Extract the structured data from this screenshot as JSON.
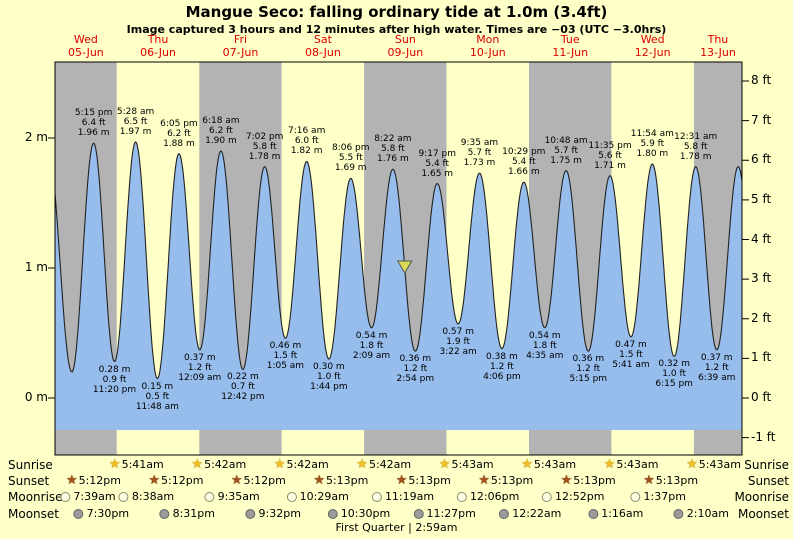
{
  "chart_data": {
    "type": "area",
    "title": "Mangue Seco: falling ordinary tide at 1.0m (3.4ft)",
    "subtitle": "Image captured 3 hours and 12 minutes after high water. Times are −03 (UTC −3.0hrs)",
    "x_range_hours": [
      6,
      206
    ],
    "y_axis_left": {
      "unit": "m",
      "ticks": [
        {
          "label": "2 m",
          "value": 2
        },
        {
          "label": "1 m",
          "value": 1
        },
        {
          "label": "0 m",
          "value": 0
        }
      ]
    },
    "y_axis_right": {
      "unit": "ft",
      "ticks": [
        {
          "label": "8 ft",
          "value": 8
        },
        {
          "label": "7 ft",
          "value": 7
        },
        {
          "label": "6 ft",
          "value": 6
        },
        {
          "label": "5 ft",
          "value": 5
        },
        {
          "label": "4 ft",
          "value": 4
        },
        {
          "label": "3 ft",
          "value": 3
        },
        {
          "label": "2 ft",
          "value": 2
        },
        {
          "label": "1 ft",
          "value": 1
        },
        {
          "label": "0 ft",
          "value": 0
        },
        {
          "label": "-1 ft",
          "value": -1
        }
      ]
    },
    "days": [
      {
        "weekday": "Wed",
        "date": "05-Jun"
      },
      {
        "weekday": "Thu",
        "date": "06-Jun"
      },
      {
        "weekday": "Fri",
        "date": "07-Jun"
      },
      {
        "weekday": "Sat",
        "date": "08-Jun"
      },
      {
        "weekday": "Sun",
        "date": "09-Jun"
      },
      {
        "weekday": "Mon",
        "date": "10-Jun"
      },
      {
        "weekday": "Tue",
        "date": "11-Jun"
      },
      {
        "weekday": "Wed",
        "date": "12-Jun"
      },
      {
        "weekday": "Thu",
        "date": "13-Jun"
      }
    ],
    "tide_events": [
      {
        "type": "high",
        "t": 17.25,
        "time": "5:15 pm",
        "ft": "6.4 ft",
        "m": "1.96 m",
        "height_m": 1.96
      },
      {
        "type": "low",
        "t": 23.33,
        "time": "11:20 pm",
        "ft": "0.9 ft",
        "m": "0.28 m",
        "height_m": 0.28
      },
      {
        "type": "high",
        "t": 29.47,
        "time": "5:28 am",
        "ft": "6.5 ft",
        "m": "1.97 m",
        "height_m": 1.97
      },
      {
        "type": "low",
        "t": 35.8,
        "time": "11:48 am",
        "ft": "0.5 ft",
        "m": "0.15 m",
        "height_m": 0.15
      },
      {
        "type": "high",
        "t": 42.08,
        "time": "6:05 pm",
        "ft": "6.2 ft",
        "m": "1.88 m",
        "height_m": 1.88
      },
      {
        "type": "low",
        "t": 48.15,
        "time": "12:09 am",
        "ft": "1.2 ft",
        "m": "0.37 m",
        "height_m": 0.37
      },
      {
        "type": "high",
        "t": 54.3,
        "time": "6:18 am",
        "ft": "6.2 ft",
        "m": "1.90 m",
        "height_m": 1.9
      },
      {
        "type": "low",
        "t": 60.7,
        "time": "12:42 pm",
        "ft": "0.7 ft",
        "m": "0.22 m",
        "height_m": 0.22
      },
      {
        "type": "high",
        "t": 67.03,
        "time": "7:02 pm",
        "ft": "5.8 ft",
        "m": "1.78 m",
        "height_m": 1.78
      },
      {
        "type": "low",
        "t": 73.08,
        "time": "1:05 am",
        "ft": "1.5 ft",
        "m": "0.46 m",
        "height_m": 0.46
      },
      {
        "type": "high",
        "t": 79.27,
        "time": "7:16 am",
        "ft": "6.0 ft",
        "m": "1.82 m",
        "height_m": 1.82
      },
      {
        "type": "low",
        "t": 85.73,
        "time": "1:44 pm",
        "ft": "1.0 ft",
        "m": "0.30 m",
        "height_m": 0.3
      },
      {
        "type": "high",
        "t": 92.1,
        "time": "8:06 pm",
        "ft": "5.5 ft",
        "m": "1.69 m",
        "height_m": 1.69
      },
      {
        "type": "low",
        "t": 98.15,
        "time": "2:09 am",
        "ft": "1.8 ft",
        "m": "0.54 m",
        "height_m": 0.54
      },
      {
        "type": "high",
        "t": 104.37,
        "time": "8:22 am",
        "ft": "5.8 ft",
        "m": "1.76 m",
        "height_m": 1.76
      },
      {
        "type": "low",
        "t": 110.9,
        "time": "2:54 pm",
        "ft": "1.2 ft",
        "m": "0.36 m",
        "height_m": 0.36
      },
      {
        "type": "high",
        "t": 117.28,
        "time": "9:17 pm",
        "ft": "5.4 ft",
        "m": "1.65 m",
        "height_m": 1.65
      },
      {
        "type": "low",
        "t": 123.37,
        "time": "3:22 am",
        "ft": "1.9 ft",
        "m": "0.57 m",
        "height_m": 0.57
      },
      {
        "type": "high",
        "t": 129.58,
        "time": "9:35 am",
        "ft": "5.7 ft",
        "m": "1.73 m",
        "height_m": 1.73
      },
      {
        "type": "low",
        "t": 136.1,
        "time": "4:06 pm",
        "ft": "1.2 ft",
        "m": "0.38 m",
        "height_m": 0.38
      },
      {
        "type": "high",
        "t": 142.48,
        "time": "10:29 pm",
        "ft": "5.4 ft",
        "m": "1.66 m",
        "height_m": 1.66
      },
      {
        "type": "low",
        "t": 148.58,
        "time": "4:35 am",
        "ft": "1.8 ft",
        "m": "0.54 m",
        "height_m": 0.54
      },
      {
        "type": "high",
        "t": 154.8,
        "time": "10:48 am",
        "ft": "5.7 ft",
        "m": "1.75 m",
        "height_m": 1.75
      },
      {
        "type": "low",
        "t": 161.25,
        "time": "5:15 pm",
        "ft": "1.2 ft",
        "m": "0.36 m",
        "height_m": 0.36
      },
      {
        "type": "high",
        "t": 167.58,
        "time": "11:35 pm",
        "ft": "5.6 ft",
        "m": "1.71 m",
        "height_m": 1.71
      },
      {
        "type": "low",
        "t": 173.68,
        "time": "5:41 am",
        "ft": "1.5 ft",
        "m": "0.47 m",
        "height_m": 0.47
      },
      {
        "type": "high",
        "t": 179.9,
        "time": "11:54 am",
        "ft": "5.9 ft",
        "m": "1.80 m",
        "height_m": 1.8
      },
      {
        "type": "low",
        "t": 186.25,
        "time": "6:15 pm",
        "ft": "1.0 ft",
        "m": "0.32 m",
        "height_m": 0.32
      },
      {
        "type": "high",
        "t": 192.52,
        "time": "12:31 am",
        "ft": "5.8 ft",
        "m": "1.78 m",
        "height_m": 1.78
      },
      {
        "type": "low",
        "t": 198.65,
        "time": "6:39 am",
        "ft": "1.2 ft",
        "m": "0.37 m",
        "height_m": 0.37
      }
    ],
    "marker": {
      "height_m": 1.0,
      "after_event_index": 14
    },
    "colors": {
      "background": "#ffffc8",
      "band_gray": "#b3b3b3",
      "tide_fill": "#96bdec",
      "tide_line": "#222222",
      "day_label": "#dd0000",
      "marker_fill": "#d9d955"
    }
  },
  "astronomy": {
    "rows": [
      {
        "id": "sunrise",
        "label": "Sunrise",
        "icon": "sunrise-star",
        "entries": [
          {
            "day": 1,
            "time": "5:41am"
          },
          {
            "day": 2,
            "time": "5:42am"
          },
          {
            "day": 3,
            "time": "5:42am"
          },
          {
            "day": 4,
            "time": "5:42am"
          },
          {
            "day": 5,
            "time": "5:43am"
          },
          {
            "day": 6,
            "time": "5:43am"
          },
          {
            "day": 7,
            "time": "5:43am"
          },
          {
            "day": 8,
            "time": "5:43am"
          }
        ]
      },
      {
        "id": "sunset",
        "label": "Sunset",
        "icon": "sunset-star",
        "entries": [
          {
            "day": 0,
            "time": "5:12pm"
          },
          {
            "day": 1,
            "time": "5:12pm"
          },
          {
            "day": 2,
            "time": "5:12pm"
          },
          {
            "day": 3,
            "time": "5:13pm"
          },
          {
            "day": 4,
            "time": "5:13pm"
          },
          {
            "day": 5,
            "time": "5:13pm"
          },
          {
            "day": 6,
            "time": "5:13pm"
          },
          {
            "day": 7,
            "time": "5:13pm"
          }
        ]
      },
      {
        "id": "moonrise",
        "label": "Moonrise",
        "icon": "moon-open",
        "entries": [
          {
            "day": 0,
            "time": "7:39am"
          },
          {
            "day": 1,
            "time": "8:38am"
          },
          {
            "day": 2,
            "time": "9:35am"
          },
          {
            "day": 3,
            "time": "10:29am"
          },
          {
            "day": 4,
            "time": "11:19am"
          },
          {
            "day": 5,
            "time": "12:06pm"
          },
          {
            "day": 6,
            "time": "12:52pm"
          },
          {
            "day": 7,
            "time": "1:37pm"
          }
        ]
      },
      {
        "id": "moonset",
        "label": "Moonset",
        "icon": "moon-filled",
        "entries": [
          {
            "day": 0,
            "time": "7:30pm"
          },
          {
            "day": 1,
            "time": "8:31pm"
          },
          {
            "day": 2,
            "time": "9:32pm"
          },
          {
            "day": 3,
            "time": "10:30pm"
          },
          {
            "day": 4,
            "time": "11:27pm"
          },
          {
            "day": 6,
            "time": "12:22am"
          },
          {
            "day": 7,
            "time": "1:16am"
          },
          {
            "day": 8,
            "time": "2:10am"
          }
        ]
      }
    ],
    "footer": "First Quarter | 2:59am"
  }
}
